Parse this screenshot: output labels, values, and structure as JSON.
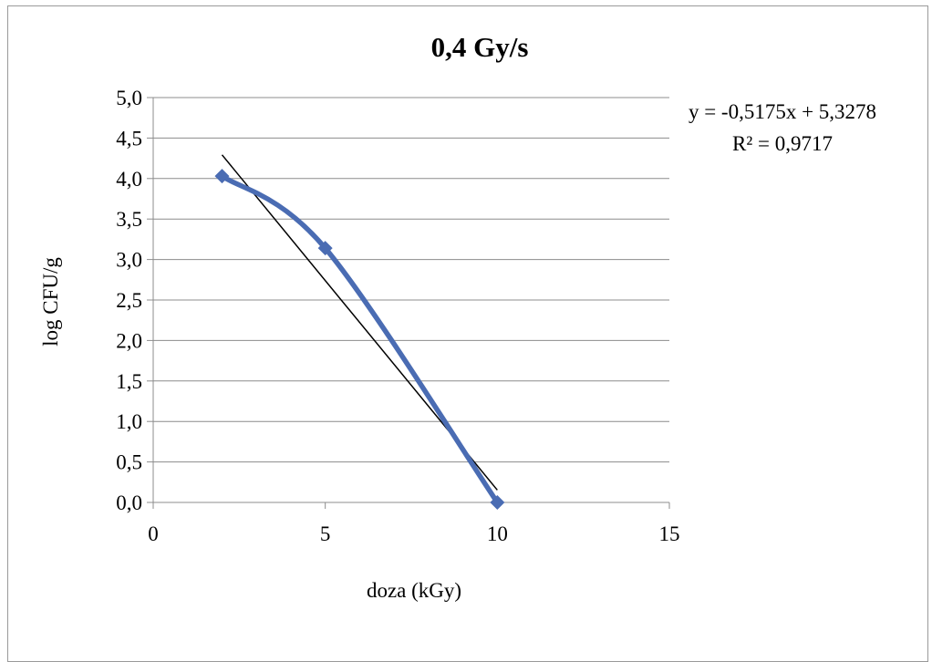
{
  "chart_data": {
    "type": "scatter",
    "title": "0,4 Gy/s",
    "xlabel": "doza (kGy)",
    "ylabel": "log CFU/g",
    "xlim": [
      0,
      15
    ],
    "ylim": [
      0,
      5
    ],
    "x_ticks": [
      "0",
      "5",
      "10",
      "15"
    ],
    "y_ticks": [
      "0,0",
      "0,5",
      "1,0",
      "1,5",
      "2,0",
      "2,5",
      "3,0",
      "3,5",
      "4,0",
      "4,5",
      "5,0"
    ],
    "grid": true,
    "series": [
      {
        "x": [
          2,
          5,
          10
        ],
        "y": [
          4.03,
          3.14,
          0.0
        ],
        "color": "#4a6cb3",
        "marker": "diamond",
        "line": "smooth"
      }
    ],
    "trendline": {
      "slope": -0.5175,
      "intercept": 5.3278,
      "x_range": [
        2,
        10
      ],
      "color": "#000000"
    },
    "annotations": [
      "y = -0,5175x + 5,3278",
      "R² = 0,9717"
    ]
  }
}
